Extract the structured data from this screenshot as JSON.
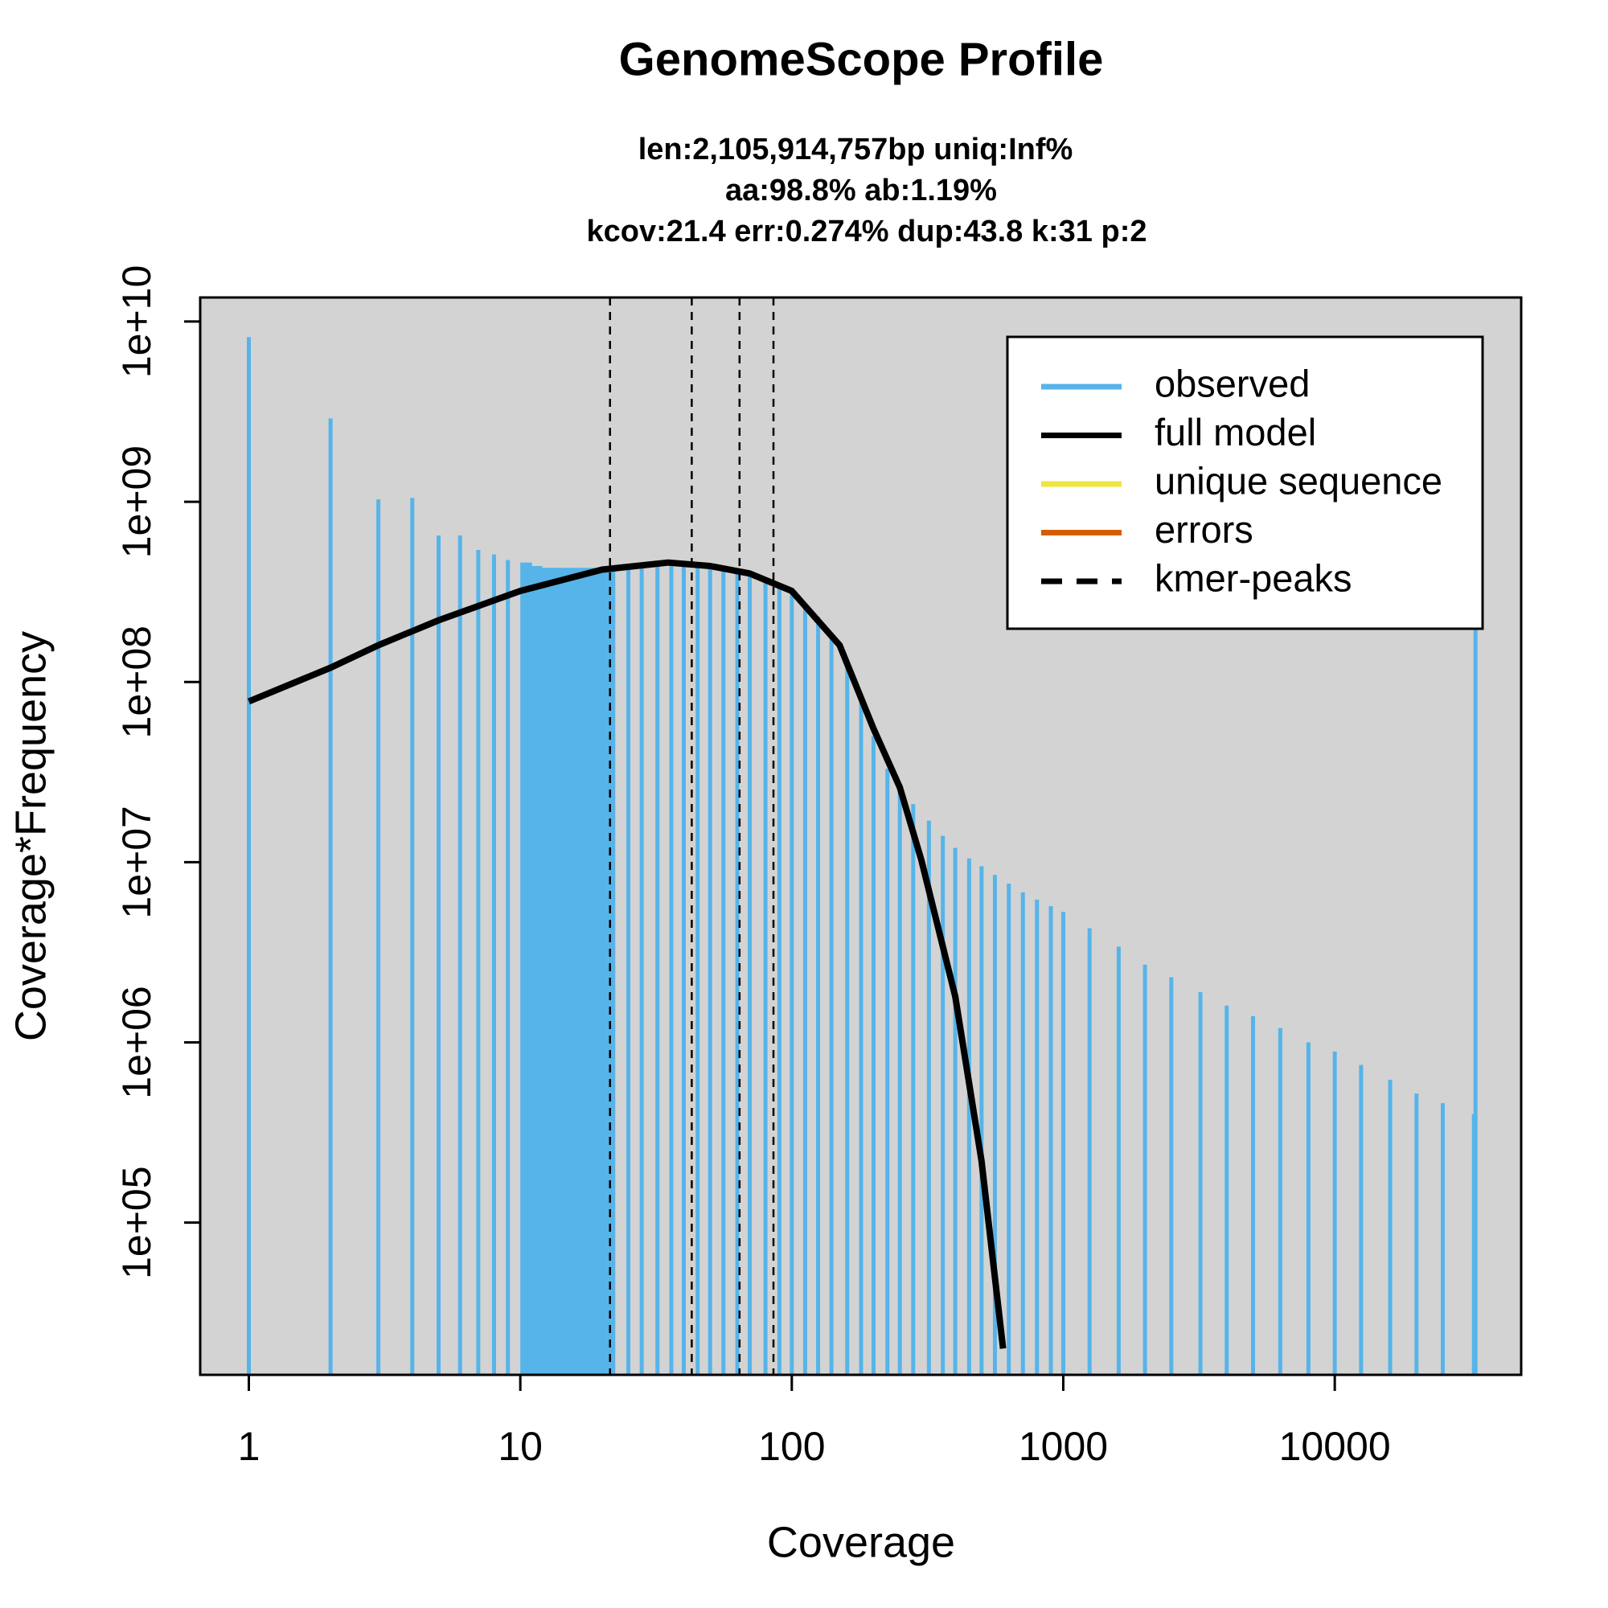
{
  "chart_data": {
    "type": "line",
    "title": "GenomeScope Profile",
    "subtitle": [
      "len:2,105,914,757bp uniq:Inf%",
      "aa:98.8% ab:1.19%",
      "kcov:21.4 err:0.274%  dup:43.8  k:31 p:2"
    ],
    "xlabel": "Coverage",
    "ylabel": "Coverage*Frequency",
    "xscale": "log",
    "yscale": "log",
    "xlim": [
      0.662,
      48600
    ],
    "ylim": [
      14300,
      13600000000
    ],
    "xticks": [
      1,
      10,
      100,
      1000,
      10000
    ],
    "yticks": [
      {
        "value": 100000,
        "label": "1e+05"
      },
      {
        "value": 1000000,
        "label": "1e+06"
      },
      {
        "value": 10000000,
        "label": "1e+07"
      },
      {
        "value": 100000000,
        "label": "1e+08"
      },
      {
        "value": 1000000000,
        "label": "1e+09"
      },
      {
        "value": 10000000000,
        "label": "1e+10"
      }
    ],
    "background": "#d3d3d3",
    "legend": "top-right",
    "series": [
      {
        "name": "observed",
        "color": "#56B4E9",
        "x": [
          1,
          2,
          3,
          4,
          5,
          6,
          7,
          8,
          9,
          10,
          11,
          12,
          13,
          14,
          15,
          16,
          17,
          18,
          19,
          20,
          22,
          25,
          28,
          32,
          36,
          40,
          45,
          50,
          56,
          63,
          70,
          80,
          90,
          100,
          112,
          125,
          140,
          160,
          180,
          200,
          225,
          250,
          280,
          320,
          360,
          400,
          450,
          500,
          560,
          630,
          710,
          800,
          900,
          1000,
          1250,
          1600,
          2000,
          2500,
          3200,
          4000,
          5000,
          6300,
          8000,
          10000,
          12500,
          16000,
          20000,
          25000,
          32000,
          33000
        ],
        "values": [
          8200000000,
          2900000000,
          1030000000,
          1050000000,
          650000000,
          650000000,
          540000000,
          510000000,
          475000000,
          460000000,
          440000000,
          430000000,
          430000000,
          430000000,
          430000000,
          430000000,
          430000000,
          430000000,
          430000000,
          430000000,
          430000000,
          440000000,
          450000000,
          460000000,
          460000000,
          460000000,
          450000000,
          440000000,
          430000000,
          420000000,
          400000000,
          370000000,
          340000000,
          310000000,
          270000000,
          230000000,
          180000000,
          125000000,
          80000000,
          50000000,
          33000000,
          26000000,
          21000000,
          17000000,
          14000000,
          12000000,
          10500000,
          9500000,
          8500000,
          7600000,
          6800000,
          6200000,
          5700000,
          5300000,
          4300000,
          3400000,
          2700000,
          2300000,
          1900000,
          1600000,
          1400000,
          1200000,
          1000000,
          890000,
          750000,
          620000,
          520000,
          460000,
          400000,
          220000000
        ]
      },
      {
        "name": "full model",
        "color": "#000000",
        "x": [
          1,
          2,
          3,
          5,
          10,
          20,
          35,
          50,
          70,
          100,
          150,
          200,
          250,
          300,
          400,
          500,
          600
        ],
        "values": [
          78000000,
          120000000,
          160000000,
          220000000,
          320000000,
          420000000,
          460000000,
          440000000,
          400000000,
          320000000,
          160000000,
          55000000,
          26000000,
          10300000,
          1800000,
          220000,
          20000
        ]
      },
      {
        "name": "unique sequence",
        "color": "#F0E442"
      },
      {
        "name": "errors",
        "color": "#D55E00"
      }
    ],
    "peaks": {
      "name": "kmer-peaks",
      "color": "#000000",
      "x": [
        21.4,
        42.8,
        64.2,
        85.6
      ]
    }
  }
}
